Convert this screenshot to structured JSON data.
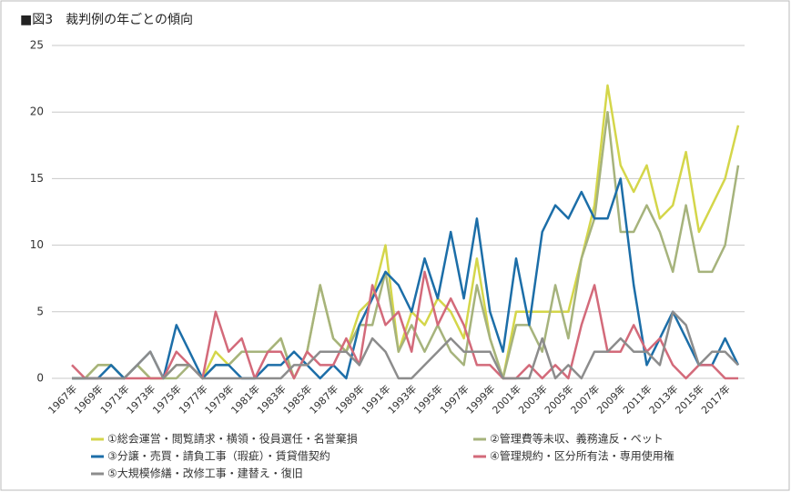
{
  "chart_data": {
    "type": "line",
    "title": "■図3　裁判例の年ごとの傾向",
    "categories": [
      "1967年",
      null,
      "1969年",
      null,
      "1971年",
      null,
      "1973年",
      null,
      "1975年",
      null,
      "1977年",
      null,
      "1979年",
      null,
      "1981年",
      null,
      "1983年",
      null,
      "1985年",
      null,
      "1987年",
      null,
      "1989年",
      null,
      "1991年",
      null,
      "1993年",
      null,
      "1995年",
      null,
      "1997年",
      null,
      "1999年",
      null,
      "2001年",
      null,
      "2003年",
      null,
      "2005年",
      null,
      "2007年",
      null,
      "2009年",
      null,
      "2011年",
      null,
      "2013年",
      null,
      "2015年",
      null,
      "2017年",
      null
    ],
    "ylim": [
      0,
      25
    ],
    "yticks": [
      0,
      5,
      10,
      15,
      20,
      25
    ],
    "grid": true,
    "series": [
      {
        "name": "①総会運営・閲覧請求・横領・役員選任・名誉棄損",
        "color": "#d4d64a",
        "values": [
          0,
          0,
          1,
          1,
          0,
          1,
          0,
          0,
          1,
          1,
          0,
          2,
          1,
          2,
          2,
          2,
          3,
          0,
          2,
          7,
          3,
          2,
          5,
          6,
          10,
          2,
          5,
          4,
          6,
          5,
          3,
          9,
          3,
          0,
          5,
          5,
          5,
          5,
          5,
          9,
          13,
          22,
          16,
          14,
          16,
          12,
          13,
          17,
          11,
          13,
          15,
          19
        ]
      },
      {
        "name": "②管理費等未収、義務違反・ペット",
        "color": "#a6b37c",
        "values": [
          0,
          0,
          1,
          1,
          0,
          1,
          0,
          0,
          0,
          1,
          0,
          1,
          1,
          2,
          2,
          2,
          3,
          0,
          2,
          7,
          3,
          2,
          4,
          4,
          8,
          2,
          4,
          2,
          4,
          2,
          1,
          7,
          3,
          0,
          4,
          4,
          2,
          7,
          3,
          9,
          12,
          20,
          11,
          11,
          13,
          11,
          8,
          13,
          8,
          8,
          10,
          16
        ]
      },
      {
        "name": "③分譲・売買・請負工事（瑕疵）・賃貸借契約",
        "color": "#1c6ea8",
        "values": [
          0,
          0,
          0,
          1,
          0,
          1,
          2,
          0,
          4,
          2,
          0,
          1,
          1,
          0,
          0,
          1,
          1,
          2,
          1,
          0,
          1,
          0,
          4,
          6,
          8,
          7,
          5,
          9,
          6,
          11,
          6,
          12,
          5,
          2,
          9,
          4,
          11,
          13,
          12,
          14,
          12,
          12,
          15,
          7,
          1,
          3,
          5,
          3,
          1,
          1,
          3,
          1
        ]
      },
      {
        "name": "④管理規約・区分所有法・専用使用権",
        "color": "#d36a7a",
        "values": [
          1,
          0,
          0,
          0,
          0,
          0,
          0,
          0,
          2,
          1,
          0,
          5,
          2,
          3,
          0,
          2,
          2,
          0,
          2,
          1,
          1,
          3,
          1,
          7,
          4,
          5,
          2,
          8,
          4,
          6,
          4,
          1,
          1,
          0,
          0,
          1,
          0,
          1,
          0,
          4,
          7,
          2,
          2,
          4,
          2,
          3,
          1,
          0,
          1,
          1,
          0,
          0
        ]
      },
      {
        "name": "⑤大規模修繕・改修工事・建替え・復旧",
        "color": "#8c8c8c",
        "values": [
          0,
          0,
          0,
          0,
          0,
          1,
          2,
          0,
          1,
          1,
          0,
          0,
          0,
          0,
          0,
          0,
          0,
          1,
          1,
          2,
          2,
          2,
          1,
          3,
          2,
          0,
          0,
          1,
          2,
          3,
          2,
          2,
          2,
          0,
          0,
          0,
          3,
          0,
          1,
          0,
          2,
          2,
          3,
          2,
          2,
          1,
          5,
          4,
          1,
          2,
          2,
          1
        ]
      }
    ]
  }
}
